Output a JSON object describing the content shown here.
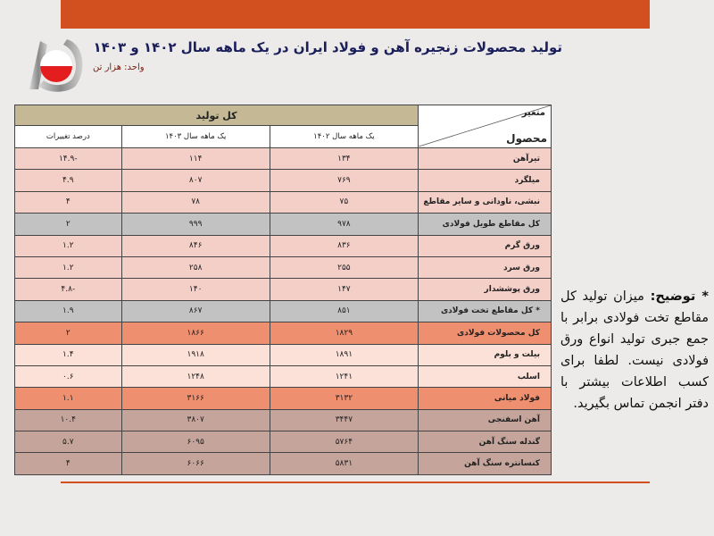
{
  "title": "تولید محصولات زنجیره آهن و فولاد ایران در یک ماهه سال ۱۴۰۲ و ۱۴۰۳",
  "unit": "واحد: هزار تن",
  "colors": {
    "accent": "#d2501f",
    "header": "#c4b994",
    "pink": "#f4cfc8",
    "gray": "#c2c2c2",
    "orange": "#ee9070",
    "light": "#fbe1d7",
    "brown": "#c5a59b",
    "title": "#1a1f5a"
  },
  "table": {
    "corner_variable": "متغیر",
    "corner_product": "محصول",
    "group_header": "کل تولید",
    "columns": [
      "یک ماهه سال ۱۴۰۲",
      "یک ماهه سال ۱۴۰۳",
      "درصد تغییرات"
    ],
    "rows": [
      {
        "name": "تیرآهن",
        "y1402": "۱۳۴",
        "y1403": "۱۱۴",
        "change": "-۱۴.۹",
        "style": "pink"
      },
      {
        "name": "میلگرد",
        "y1402": "۷۶۹",
        "y1403": "۸۰۷",
        "change": "۴.۹",
        "style": "pink"
      },
      {
        "name": "نبشی، ناودانی و سایر مقاطع",
        "y1402": "۷۵",
        "y1403": "۷۸",
        "change": "۴",
        "style": "pink"
      },
      {
        "name": "کل مقاطع طویل فولادی",
        "y1402": "۹۷۸",
        "y1403": "۹۹۹",
        "change": "۲",
        "style": "gray"
      },
      {
        "name": "ورق گرم",
        "y1402": "۸۳۶",
        "y1403": "۸۴۶",
        "change": "۱.۲",
        "style": "pink"
      },
      {
        "name": "ورق سرد",
        "y1402": "۲۵۵",
        "y1403": "۲۵۸",
        "change": "۱.۲",
        "style": "pink"
      },
      {
        "name": "ورق پوششدار",
        "y1402": "۱۴۷",
        "y1403": "۱۴۰",
        "change": "-۴.۸",
        "style": "pink"
      },
      {
        "name": "* کل مقاطع تخت فولادی",
        "y1402": "۸۵۱",
        "y1403": "۸۶۷",
        "change": "۱.۹",
        "style": "gray"
      },
      {
        "name": "کل محصولات فولادی",
        "y1402": "۱۸۲۹",
        "y1403": "۱۸۶۶",
        "change": "۲",
        "style": "orange"
      },
      {
        "name": "بیلت و بلوم",
        "y1402": "۱۸۹۱",
        "y1403": "۱۹۱۸",
        "change": "۱.۴",
        "style": "light"
      },
      {
        "name": "اسلب",
        "y1402": "۱۲۴۱",
        "y1403": "۱۲۴۸",
        "change": "۰.۶",
        "style": "light"
      },
      {
        "name": "فولاد میانی",
        "y1402": "۳۱۳۲",
        "y1403": "۳۱۶۶",
        "change": "۱.۱",
        "style": "orange"
      },
      {
        "name": "آهن اسفنجی",
        "y1402": "۳۴۴۷",
        "y1403": "۳۸۰۷",
        "change": "۱۰.۴",
        "style": "brown"
      },
      {
        "name": "گندله سنگ آهن",
        "y1402": "۵۷۶۴",
        "y1403": "۶۰۹۵",
        "change": "۵.۷",
        "style": "brown"
      },
      {
        "name": "کنسانتره سنگ آهن",
        "y1402": "۵۸۳۱",
        "y1403": "۶۰۶۶",
        "change": "۴",
        "style": "brown"
      }
    ]
  },
  "note": {
    "label": "* توضیح:",
    "text": "میزان تولید کل مقاطع تخت فولادی برابر با جمع جبری تولید انواع ورق فولادی نیست. لطفا برای کسب اطلاعات بیشتر با دفتر انجمن تماس بگیرید."
  },
  "logo": {
    "icon": "association-logo"
  }
}
